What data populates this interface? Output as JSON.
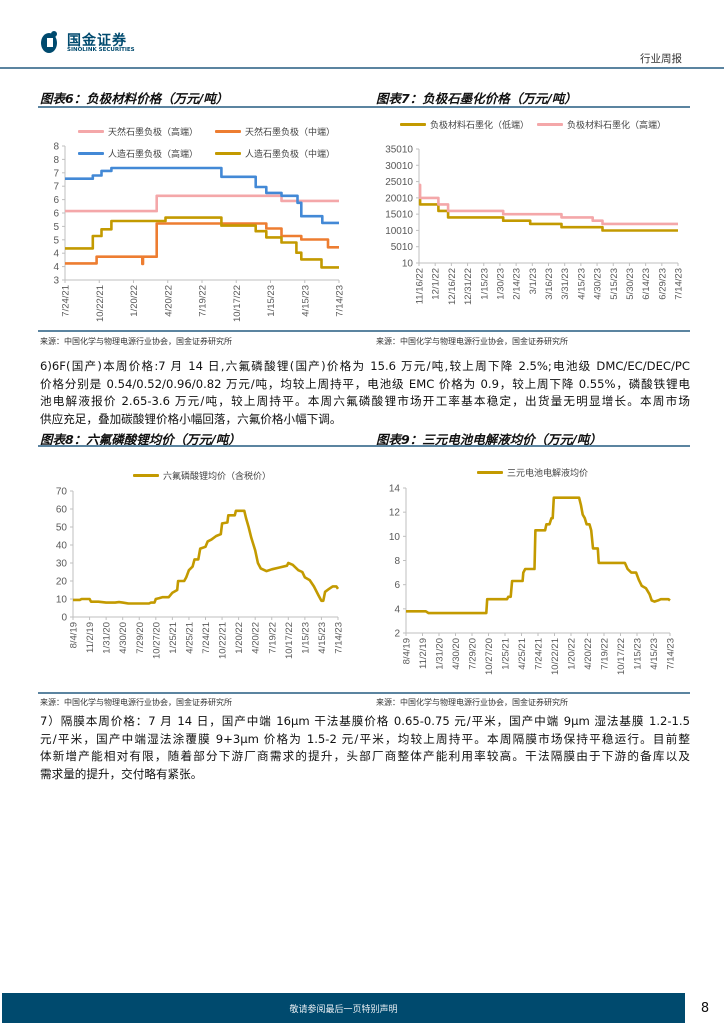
{
  "header": {
    "logo_cn": "国金证券",
    "logo_en": "SINOLINK SECURITIES",
    "report_type": "行业周报",
    "brand_color": "#004a6e"
  },
  "figures": [
    {
      "title": "图表6：负极材料价格（万元/吨）",
      "source": "来源：中国化学与物理电源行业协会，国金证券研究所"
    },
    {
      "title": "图表7：负极石墨化价格（万元/吨）",
      "source": "来源：中国化学与物理电源行业协会，国金证券研究所"
    },
    {
      "title": "图表8：六氟磷酸锂均价（万元/吨）",
      "source": "来源：中国化学与物理电源行业协会，国金证券研究所"
    },
    {
      "title": "图表9：三元电池电解液均价（万元/吨）",
      "source": "来源：中国化学与物理电源行业协会，国金证券研究所"
    }
  ],
  "paragraphs": [
    {
      "lines": [
        "6)6F(国产)本周价格:7 月 14 日,六氟磷酸锂(国产)价格为 15.6 万元/吨,较上周下降 2.5%;电池级 DMC/EC/DEC/PC",
        "价格分别是 0.54/0.52/0.96/0.82 万元/吨，均较上周持平，电池级 EMC 价格为 0.9，较上周下降 0.55%，磷酸铁锂电",
        "池电解液报价 2.65-3.6 万元/吨，较上周持平。本周六氟磷酸锂市场开工率基本稳定，出货量无明显增长。本周市场",
        "供应充足，叠加碳酸锂价格小幅回落，六氟价格小幅下调。"
      ]
    },
    {
      "lines": [
        "7）隔膜本周价格：7 月 14 日，国产中端 16μm 干法基膜价格 0.65-0.75 元/平米，国产中端 9μm 湿法基膜 1.2-1.5",
        "元/平米，国产中端湿法涂覆膜 9+3μm 价格为 1.5-2 元/平米，均较上周持平。本周隔膜市场保持平稳运行。目前整",
        "体新增产能相对有限，随着部分下游厂商需求的提升，头部厂商整体产能利用率较高。干法隔膜由于下游的备库以及",
        "需求量的提升，交付略有紧张。"
      ]
    }
  ],
  "chart_data": [
    {
      "type": "line",
      "line_style": "step",
      "ylim": [
        3,
        8
      ],
      "ytick_labels": [
        "3",
        "4",
        "4",
        "5",
        "5",
        "6",
        "6",
        "7",
        "7",
        "8",
        "8"
      ],
      "ytick_values": [
        3,
        3.5,
        4,
        4.5,
        5,
        5.5,
        6,
        6.5,
        7,
        7.5,
        8
      ],
      "xlim": [
        "2021-07-24",
        "2023-07-14"
      ],
      "xtick_labels": [
        "7/24/21",
        "10/22/21",
        "1/20/22",
        "4/20/22",
        "7/19/22",
        "10/17/22",
        "1/15/23",
        "4/15/23",
        "7/14/23"
      ],
      "legend_placement": "top",
      "grid": false,
      "series": [
        {
          "name": "天然石墨负极（高端）",
          "color": "#f4a7a9",
          "points": [
            [
              "2021-07-24",
              5.57
            ],
            [
              "2022-03-22",
              6.14
            ],
            [
              "2023-02-13",
              5.95
            ],
            [
              "2023-07-14",
              5.95
            ]
          ]
        },
        {
          "name": "天然石墨负极（中端）",
          "color": "#ed7d31",
          "points": [
            [
              "2021-07-24",
              3.62
            ],
            [
              "2021-10-15",
              3.87
            ],
            [
              "2022-02-12",
              3.6
            ],
            [
              "2022-02-14",
              3.87
            ],
            [
              "2022-03-22",
              5.11
            ],
            [
              "2023-01-04",
              4.92
            ],
            [
              "2023-02-13",
              4.64
            ],
            [
              "2023-04-06",
              4.51
            ],
            [
              "2023-06-15",
              4.22
            ],
            [
              "2023-07-14",
              4.22
            ]
          ]
        },
        {
          "name": "人造石墨负极（高端）",
          "color": "#4389d6",
          "points": [
            [
              "2021-07-24",
              6.78
            ],
            [
              "2021-10-05",
              6.9
            ],
            [
              "2021-10-28",
              7.07
            ],
            [
              "2021-11-23",
              7.18
            ],
            [
              "2022-09-08",
              6.85
            ],
            [
              "2022-12-07",
              6.47
            ],
            [
              "2023-01-04",
              6.25
            ],
            [
              "2023-02-13",
              6.14
            ],
            [
              "2023-03-27",
              5.88
            ],
            [
              "2023-04-06",
              5.38
            ],
            [
              "2023-05-31",
              5.13
            ],
            [
              "2023-07-14",
              5.13
            ]
          ]
        },
        {
          "name": "人造石墨负极（中端）",
          "color": "#c39a00",
          "points": [
            [
              "2021-07-24",
              4.18
            ],
            [
              "2021-10-05",
              4.64
            ],
            [
              "2021-10-28",
              4.89
            ],
            [
              "2021-11-23",
              5.2
            ],
            [
              "2022-04-14",
              5.33
            ],
            [
              "2022-09-08",
              5.03
            ],
            [
              "2022-12-07",
              4.82
            ],
            [
              "2023-01-04",
              4.59
            ],
            [
              "2023-02-13",
              4.4
            ],
            [
              "2023-03-24",
              4.02
            ],
            [
              "2023-04-06",
              3.77
            ],
            [
              "2023-05-29",
              3.47
            ],
            [
              "2023-07-14",
              3.47
            ]
          ]
        }
      ]
    },
    {
      "type": "line",
      "line_style": "step",
      "ylim": [
        10,
        35010
      ],
      "ytick_labels": [
        "10",
        "5010",
        "10010",
        "15010",
        "20010",
        "25010",
        "30010",
        "35010"
      ],
      "ytick_values": [
        10,
        5010,
        10010,
        15010,
        20010,
        25010,
        30010,
        35010
      ],
      "xlim": [
        "2022-11-16",
        "2023-07-14"
      ],
      "xtick_labels": [
        "11/16/22",
        "12/1/22",
        "12/16/22",
        "12/31/22",
        "1/15/23",
        "1/30/23",
        "2/14/23",
        "3/1/23",
        "3/16/23",
        "3/31/23",
        "4/15/23",
        "4/30/23",
        "5/15/23",
        "5/30/23",
        "6/14/23",
        "6/29/23",
        "7/14/23"
      ],
      "legend_placement": "top",
      "grid": false,
      "series": [
        {
          "name": "负极材料石墨化（低端）",
          "color": "#c39a00",
          "points": [
            [
              "2022-11-16",
              19500
            ],
            [
              "2022-11-17",
              18000
            ],
            [
              "2022-12-04",
              16000
            ],
            [
              "2022-12-13",
              14000
            ],
            [
              "2023-02-02",
              13000
            ],
            [
              "2023-02-27",
              12000
            ],
            [
              "2023-03-28",
              11000
            ],
            [
              "2023-05-05",
              10000
            ],
            [
              "2023-07-14",
              10000
            ]
          ]
        },
        {
          "name": "负极材料石墨化（高端）",
          "color": "#f4a7a9",
          "points": [
            [
              "2022-11-16",
              24000
            ],
            [
              "2022-11-17",
              20000
            ],
            [
              "2022-12-04",
              18000
            ],
            [
              "2022-12-13",
              16000
            ],
            [
              "2023-02-02",
              15000
            ],
            [
              "2023-03-28",
              14000
            ],
            [
              "2023-04-26",
              13000
            ],
            [
              "2023-05-05",
              12000
            ],
            [
              "2023-07-14",
              12000
            ]
          ]
        }
      ]
    },
    {
      "type": "line",
      "ylim": [
        0,
        70
      ],
      "ytick_labels": [
        "0",
        "10",
        "20",
        "30",
        "40",
        "50",
        "60",
        "70"
      ],
      "ytick_values": [
        0,
        10,
        20,
        30,
        40,
        50,
        60,
        70
      ],
      "xlim": [
        "2019-08-04",
        "2023-07-14"
      ],
      "xtick_labels": [
        "8/4/19",
        "11/2/19",
        "1/31/20",
        "4/30/20",
        "7/29/20",
        "10/27/20",
        "1/25/21",
        "4/25/21",
        "7/24/21",
        "10/22/21",
        "1/20/22",
        "4/20/22",
        "7/19/22",
        "10/17/22",
        "1/15/23",
        "4/15/23",
        "7/14/23"
      ],
      "legend_placement": "top",
      "grid": false,
      "series": [
        {
          "name": "六氟磷酸锂均价（含税价）",
          "color": "#c39a00",
          "points": [
            [
              "2019-08-04",
              9.5
            ],
            [
              "2019-09-10",
              9.5
            ],
            [
              "2019-09-20",
              10
            ],
            [
              "2019-11-02",
              10
            ],
            [
              "2019-11-10",
              8.5
            ],
            [
              "2019-12-20",
              8.5
            ],
            [
              "2020-01-31",
              8
            ],
            [
              "2020-03-20",
              8
            ],
            [
              "2020-04-10",
              8.3
            ],
            [
              "2020-04-30",
              8
            ],
            [
              "2020-06-01",
              7.5
            ],
            [
              "2020-09-20",
              7.5
            ],
            [
              "2020-10-01",
              8
            ],
            [
              "2020-10-20",
              8
            ],
            [
              "2020-10-27",
              10
            ],
            [
              "2020-11-15",
              10.5
            ],
            [
              "2020-12-01",
              11
            ],
            [
              "2021-01-05",
              11
            ],
            [
              "2021-01-25",
              13.5
            ],
            [
              "2021-02-20",
              15
            ],
            [
              "2021-02-25",
              20
            ],
            [
              "2021-03-30",
              20
            ],
            [
              "2021-04-10",
              22
            ],
            [
              "2021-04-25",
              26
            ],
            [
              "2021-05-15",
              28
            ],
            [
              "2021-05-25",
              32
            ],
            [
              "2021-06-15",
              32
            ],
            [
              "2021-06-25",
              38
            ],
            [
              "2021-07-24",
              39
            ],
            [
              "2021-08-05",
              42
            ],
            [
              "2021-08-25",
              43
            ],
            [
              "2021-09-20",
              45
            ],
            [
              "2021-10-15",
              46
            ],
            [
              "2021-10-22",
              52
            ],
            [
              "2021-11-20",
              52.5
            ],
            [
              "2021-11-25",
              56.5
            ],
            [
              "2021-12-30",
              56.5
            ],
            [
              "2022-01-05",
              59
            ],
            [
              "2022-02-20",
              59
            ],
            [
              "2022-03-01",
              55
            ],
            [
              "2022-03-15",
              50
            ],
            [
              "2022-03-30",
              44
            ],
            [
              "2022-04-20",
              37
            ],
            [
              "2022-05-05",
              30
            ],
            [
              "2022-05-20",
              27
            ],
            [
              "2022-06-20",
              25.5
            ],
            [
              "2022-07-19",
              26.5
            ],
            [
              "2022-08-30",
              27.5
            ],
            [
              "2022-10-10",
              28.5
            ],
            [
              "2022-10-17",
              30
            ],
            [
              "2022-11-10",
              29
            ],
            [
              "2022-12-10",
              26
            ],
            [
              "2023-01-01",
              25
            ],
            [
              "2023-01-15",
              22
            ],
            [
              "2023-02-10",
              20.5
            ],
            [
              "2023-03-05",
              17
            ],
            [
              "2023-03-30",
              12
            ],
            [
              "2023-04-15",
              9
            ],
            [
              "2023-04-25",
              9
            ],
            [
              "2023-05-05",
              14
            ],
            [
              "2023-05-25",
              15.5
            ],
            [
              "2023-06-15",
              17
            ],
            [
              "2023-07-05",
              17
            ],
            [
              "2023-07-14",
              15.6
            ]
          ]
        }
      ]
    },
    {
      "type": "line",
      "ylim": [
        2,
        14
      ],
      "ytick_labels": [
        "2",
        "4",
        "6",
        "8",
        "10",
        "12",
        "14"
      ],
      "ytick_values": [
        2,
        4,
        6,
        8,
        10,
        12,
        14
      ],
      "xlim": [
        "2019-08-04",
        "2023-07-14"
      ],
      "xtick_labels": [
        "8/4/19",
        "11/2/19",
        "1/31/20",
        "4/30/20",
        "7/29/20",
        "10/27/20",
        "1/25/21",
        "4/25/21",
        "7/24/21",
        "10/22/21",
        "1/20/22",
        "4/20/22",
        "7/19/22",
        "10/17/22",
        "1/15/23",
        "4/15/23",
        "7/14/23"
      ],
      "legend_placement": "top",
      "grid": false,
      "series": [
        {
          "name": "三元电池电解液均价",
          "color": "#c39a00",
          "points": [
            [
              "2019-08-04",
              3.8
            ],
            [
              "2019-11-20",
              3.8
            ],
            [
              "2019-12-05",
              3.65
            ],
            [
              "2020-10-15",
              3.65
            ],
            [
              "2020-10-20",
              4.8
            ],
            [
              "2021-02-05",
              4.8
            ],
            [
              "2021-02-12",
              5.0
            ],
            [
              "2021-02-25",
              5.0
            ],
            [
              "2021-03-05",
              6.3
            ],
            [
              "2021-05-01",
              6.3
            ],
            [
              "2021-05-05",
              7.0
            ],
            [
              "2021-05-15",
              7.3
            ],
            [
              "2021-07-05",
              7.3
            ],
            [
              "2021-07-10",
              10.5
            ],
            [
              "2021-09-01",
              10.5
            ],
            [
              "2021-09-08",
              11.0
            ],
            [
              "2021-09-25",
              11.0
            ],
            [
              "2021-10-05",
              11.5
            ],
            [
              "2021-10-12",
              11.5
            ],
            [
              "2021-10-18",
              13.2
            ],
            [
              "2022-03-05",
              13.2
            ],
            [
              "2022-03-15",
              12.6
            ],
            [
              "2022-03-25",
              11.8
            ],
            [
              "2022-04-05",
              11.5
            ],
            [
              "2022-04-15",
              11.0
            ],
            [
              "2022-05-01",
              11.0
            ],
            [
              "2022-05-10",
              10.5
            ],
            [
              "2022-05-20",
              9.0
            ],
            [
              "2022-06-15",
              9.0
            ],
            [
              "2022-06-20",
              7.8
            ],
            [
              "2022-11-10",
              7.8
            ],
            [
              "2022-11-25",
              7.3
            ],
            [
              "2022-12-15",
              7.0
            ],
            [
              "2023-01-10",
              7.0
            ],
            [
              "2023-01-25",
              6.4
            ],
            [
              "2023-02-10",
              5.9
            ],
            [
              "2023-03-05",
              5.7
            ],
            [
              "2023-03-25",
              5.2
            ],
            [
              "2023-04-05",
              4.7
            ],
            [
              "2023-04-20",
              4.6
            ],
            [
              "2023-05-10",
              4.7
            ],
            [
              "2023-05-25",
              4.8
            ],
            [
              "2023-07-05",
              4.8
            ],
            [
              "2023-07-14",
              4.7
            ]
          ]
        }
      ]
    }
  ],
  "footer": {
    "disclaimer": "敬请参阅最后一页特别声明",
    "page_number": "8"
  }
}
